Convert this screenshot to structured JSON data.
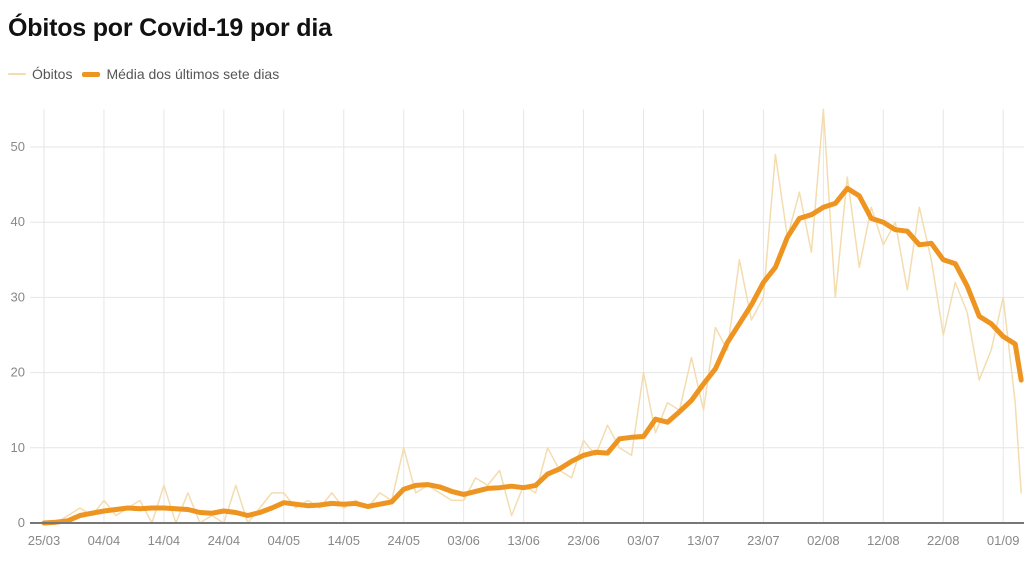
{
  "chart_data": {
    "type": "line",
    "title": "Óbitos por Covid-19 por dia",
    "xlabel": "",
    "ylabel": "",
    "ylim": [
      0,
      55
    ],
    "grid": true,
    "legend_position": "top-left",
    "yticks": [
      "0",
      "10",
      "20",
      "30",
      "40",
      "50"
    ],
    "xticks": [
      "25/03",
      "04/04",
      "14/04",
      "24/04",
      "04/05",
      "14/05",
      "24/05",
      "03/06",
      "13/06",
      "23/06",
      "03/07",
      "13/07",
      "23/07",
      "02/08",
      "12/08",
      "22/08",
      "01/09"
    ],
    "x": [
      "25/03",
      "27/03",
      "29/03",
      "31/03",
      "02/04",
      "04/04",
      "06/04",
      "08/04",
      "10/04",
      "12/04",
      "14/04",
      "16/04",
      "18/04",
      "20/04",
      "22/04",
      "24/04",
      "26/04",
      "28/04",
      "30/04",
      "02/05",
      "04/05",
      "06/05",
      "08/05",
      "10/05",
      "12/05",
      "14/05",
      "16/05",
      "18/05",
      "20/05",
      "22/05",
      "24/05",
      "26/05",
      "28/05",
      "30/05",
      "01/06",
      "03/06",
      "05/06",
      "07/06",
      "09/06",
      "11/06",
      "13/06",
      "15/06",
      "17/06",
      "19/06",
      "21/06",
      "23/06",
      "25/06",
      "27/06",
      "29/06",
      "01/07",
      "03/07",
      "05/07",
      "07/07",
      "09/07",
      "11/07",
      "13/07",
      "15/07",
      "17/07",
      "19/07",
      "21/07",
      "23/07",
      "25/07",
      "27/07",
      "29/07",
      "31/07",
      "02/08",
      "04/08",
      "06/08",
      "08/08",
      "10/08",
      "12/08",
      "14/08",
      "16/08",
      "18/08",
      "20/08",
      "22/08",
      "24/08",
      "26/08",
      "28/08",
      "30/08",
      "01/09",
      "03/09",
      "04/09"
    ],
    "series": [
      {
        "name": "Óbitos",
        "color": "#f3ddb0",
        "values": [
          0,
          0,
          1,
          2,
          1,
          3,
          1,
          2,
          3,
          0,
          5,
          0,
          4,
          0,
          1,
          0,
          5,
          0,
          2,
          4,
          4,
          2,
          3,
          2,
          4,
          2,
          3,
          2,
          4,
          3,
          10,
          4,
          5,
          4,
          3,
          3,
          6,
          5,
          7,
          1,
          5,
          4,
          10,
          7,
          6,
          11,
          9,
          13,
          10,
          9,
          20,
          12,
          16,
          15,
          22,
          15,
          26,
          23,
          35,
          27,
          30,
          49,
          38,
          44,
          36,
          55,
          30,
          46,
          34,
          42,
          37,
          40,
          31,
          42,
          35,
          25,
          32,
          28,
          19,
          23,
          30,
          16,
          4
        ]
      },
      {
        "name": "Média dos últimos sete dias",
        "color": "#ee9420",
        "values": [
          0,
          0.1,
          0.3,
          1.0,
          1.3,
          1.6,
          1.8,
          2.0,
          1.9,
          2.0,
          2.0,
          1.9,
          1.8,
          1.4,
          1.3,
          1.6,
          1.4,
          1.0,
          1.4,
          2.0,
          2.7,
          2.5,
          2.3,
          2.4,
          2.6,
          2.5,
          2.6,
          2.2,
          2.5,
          2.8,
          4.5,
          5.0,
          5.1,
          4.8,
          4.2,
          3.8,
          4.2,
          4.6,
          4.7,
          4.9,
          4.7,
          5.0,
          6.5,
          7.2,
          8.2,
          9.0,
          9.4,
          9.3,
          11.2,
          11.4,
          11.5,
          13.8,
          13.4,
          14.8,
          16.3,
          18.5,
          20.5,
          24,
          26.5,
          29,
          32,
          34,
          38,
          40.5,
          41,
          42,
          42.5,
          44.5,
          43.5,
          40.5,
          40,
          39,
          38.8,
          37,
          37.2,
          35,
          34.5,
          31.5,
          27.5,
          26.5,
          24.8,
          23.8,
          19
        ]
      }
    ]
  }
}
